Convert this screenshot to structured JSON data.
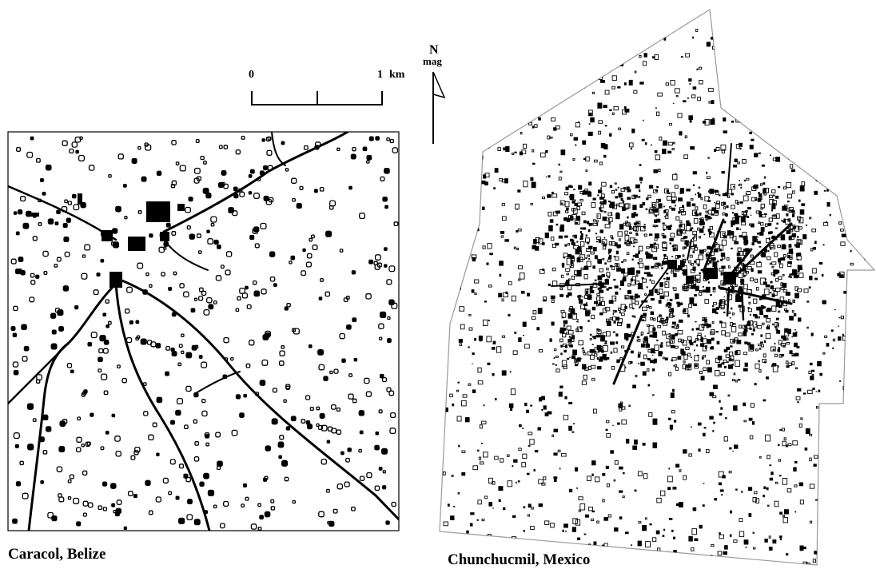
{
  "scale_bar": {
    "start_label": "0",
    "end_label": "1",
    "unit_label": "km"
  },
  "north_arrow": {
    "letter": "N",
    "note": "mag"
  },
  "maps": [
    {
      "caption": "Caracol, Belize"
    },
    {
      "caption": "Chunchucmil, Mexico"
    }
  ]
}
